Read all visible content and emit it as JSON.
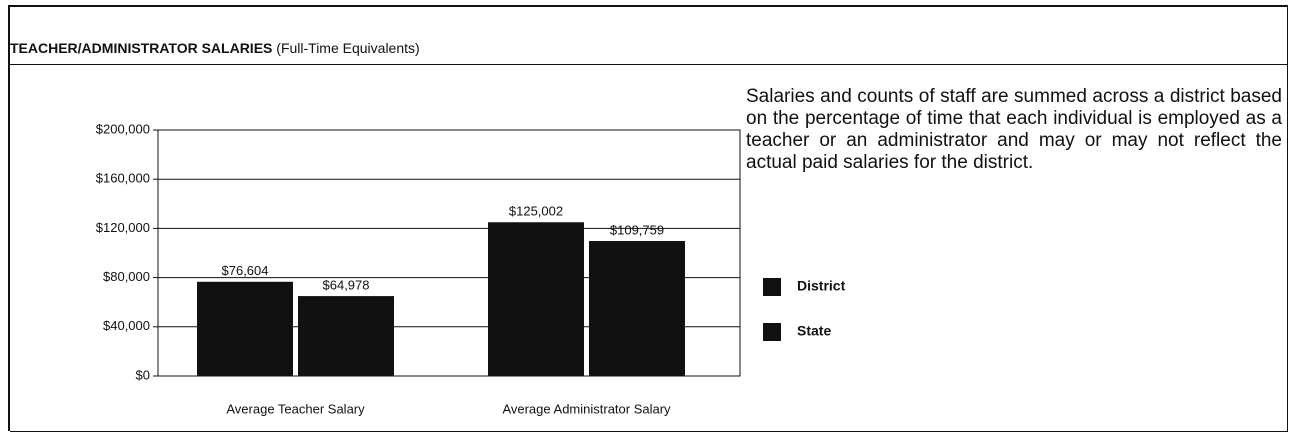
{
  "chart_data": {
    "type": "bar",
    "title": "TEACHER/ADMINISTRATOR SALARIES",
    "subtitle": "(Full-Time Equivalents)",
    "description": "Salaries and counts of staff are summed across a district based on the percentage of time that each individual is employed as a teacher or an administrator and may or may not reflect the actual paid salaries for the district.",
    "categories": [
      "Average Teacher Salary",
      "Average Administrator Salary"
    ],
    "series": [
      {
        "name": "District",
        "color": "#111111",
        "values": [
          76604,
          125002
        ],
        "value_labels": [
          "$76,604",
          "$125,002"
        ]
      },
      {
        "name": "State",
        "color": "#111111",
        "values": [
          64978,
          109759
        ],
        "value_labels": [
          "$64,978",
          "$109,759"
        ]
      }
    ],
    "ylim": [
      0,
      200000
    ],
    "yticks": [
      {
        "value": 0,
        "label": "$0"
      },
      {
        "value": 40000,
        "label": "$40,000"
      },
      {
        "value": 80000,
        "label": "$80,000"
      },
      {
        "value": 120000,
        "label": "$120,000"
      },
      {
        "value": 160000,
        "label": "$160,000"
      },
      {
        "value": 200000,
        "label": "$200,000"
      }
    ],
    "grid": true
  }
}
